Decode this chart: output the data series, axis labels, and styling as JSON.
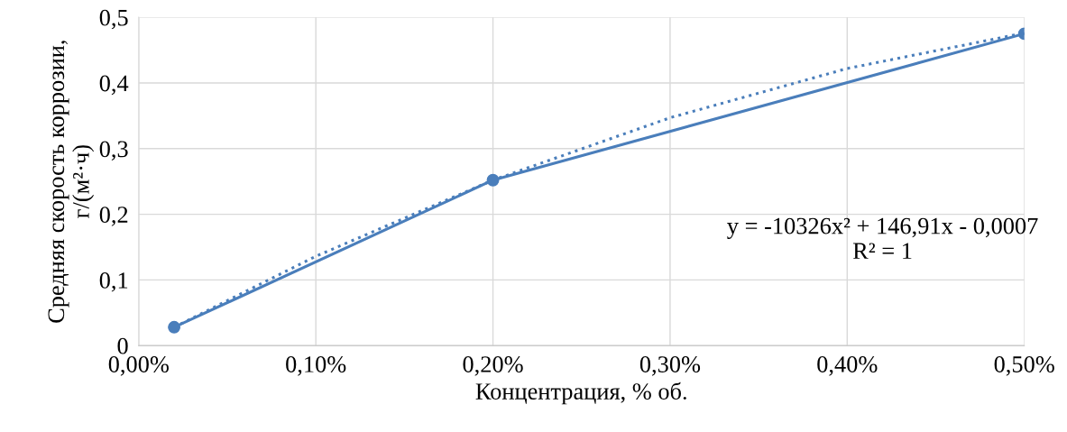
{
  "chart_data": {
    "type": "line",
    "xlabel": "Концентрация, % об.",
    "ylabel": "Средняя скорость коррозии,\nг/(м²·ч)",
    "series": [
      {
        "color": "#4a7ebb",
        "x": [
          0.02,
          0.2,
          0.5
        ],
        "values": [
          0.028,
          0.252,
          0.475
        ],
        "marker": "circle",
        "line_style": "solid"
      },
      {
        "type": "line",
        "color": "#4a7ebb",
        "x": [
          0.02,
          0.1,
          0.2,
          0.3,
          0.4,
          0.5
        ],
        "values": [
          0.028,
          0.136,
          0.252,
          0.347,
          0.422,
          0.476
        ],
        "marker": "none",
        "line_style": "dotted"
      }
    ],
    "xlim": [
      0,
      0.5
    ],
    "xticks": [
      {
        "value": 0,
        "label": "0,00%"
      },
      {
        "value": 0.1,
        "label": "0,10%"
      },
      {
        "value": 0.2,
        "label": "0,20%"
      },
      {
        "value": 0.3,
        "label": "0,30%"
      },
      {
        "value": 0.4,
        "label": "0,40%"
      },
      {
        "value": 0.5,
        "label": "0,50%"
      }
    ],
    "ylim": [
      0,
      0.5
    ],
    "yticks": [
      0,
      {
        "value": 0.1,
        "label": "0,1"
      },
      {
        "value": 0.2,
        "label": "0,2"
      },
      {
        "value": 0.3,
        "label": "0,3"
      },
      {
        "value": 0.4,
        "label": "0,4"
      },
      {
        "value": 0.5,
        "label": "0,5"
      }
    ],
    "grid": true,
    "annotations": [
      "y = -10326x² + 146,91x - 0,0007\nR² = 1"
    ]
  }
}
